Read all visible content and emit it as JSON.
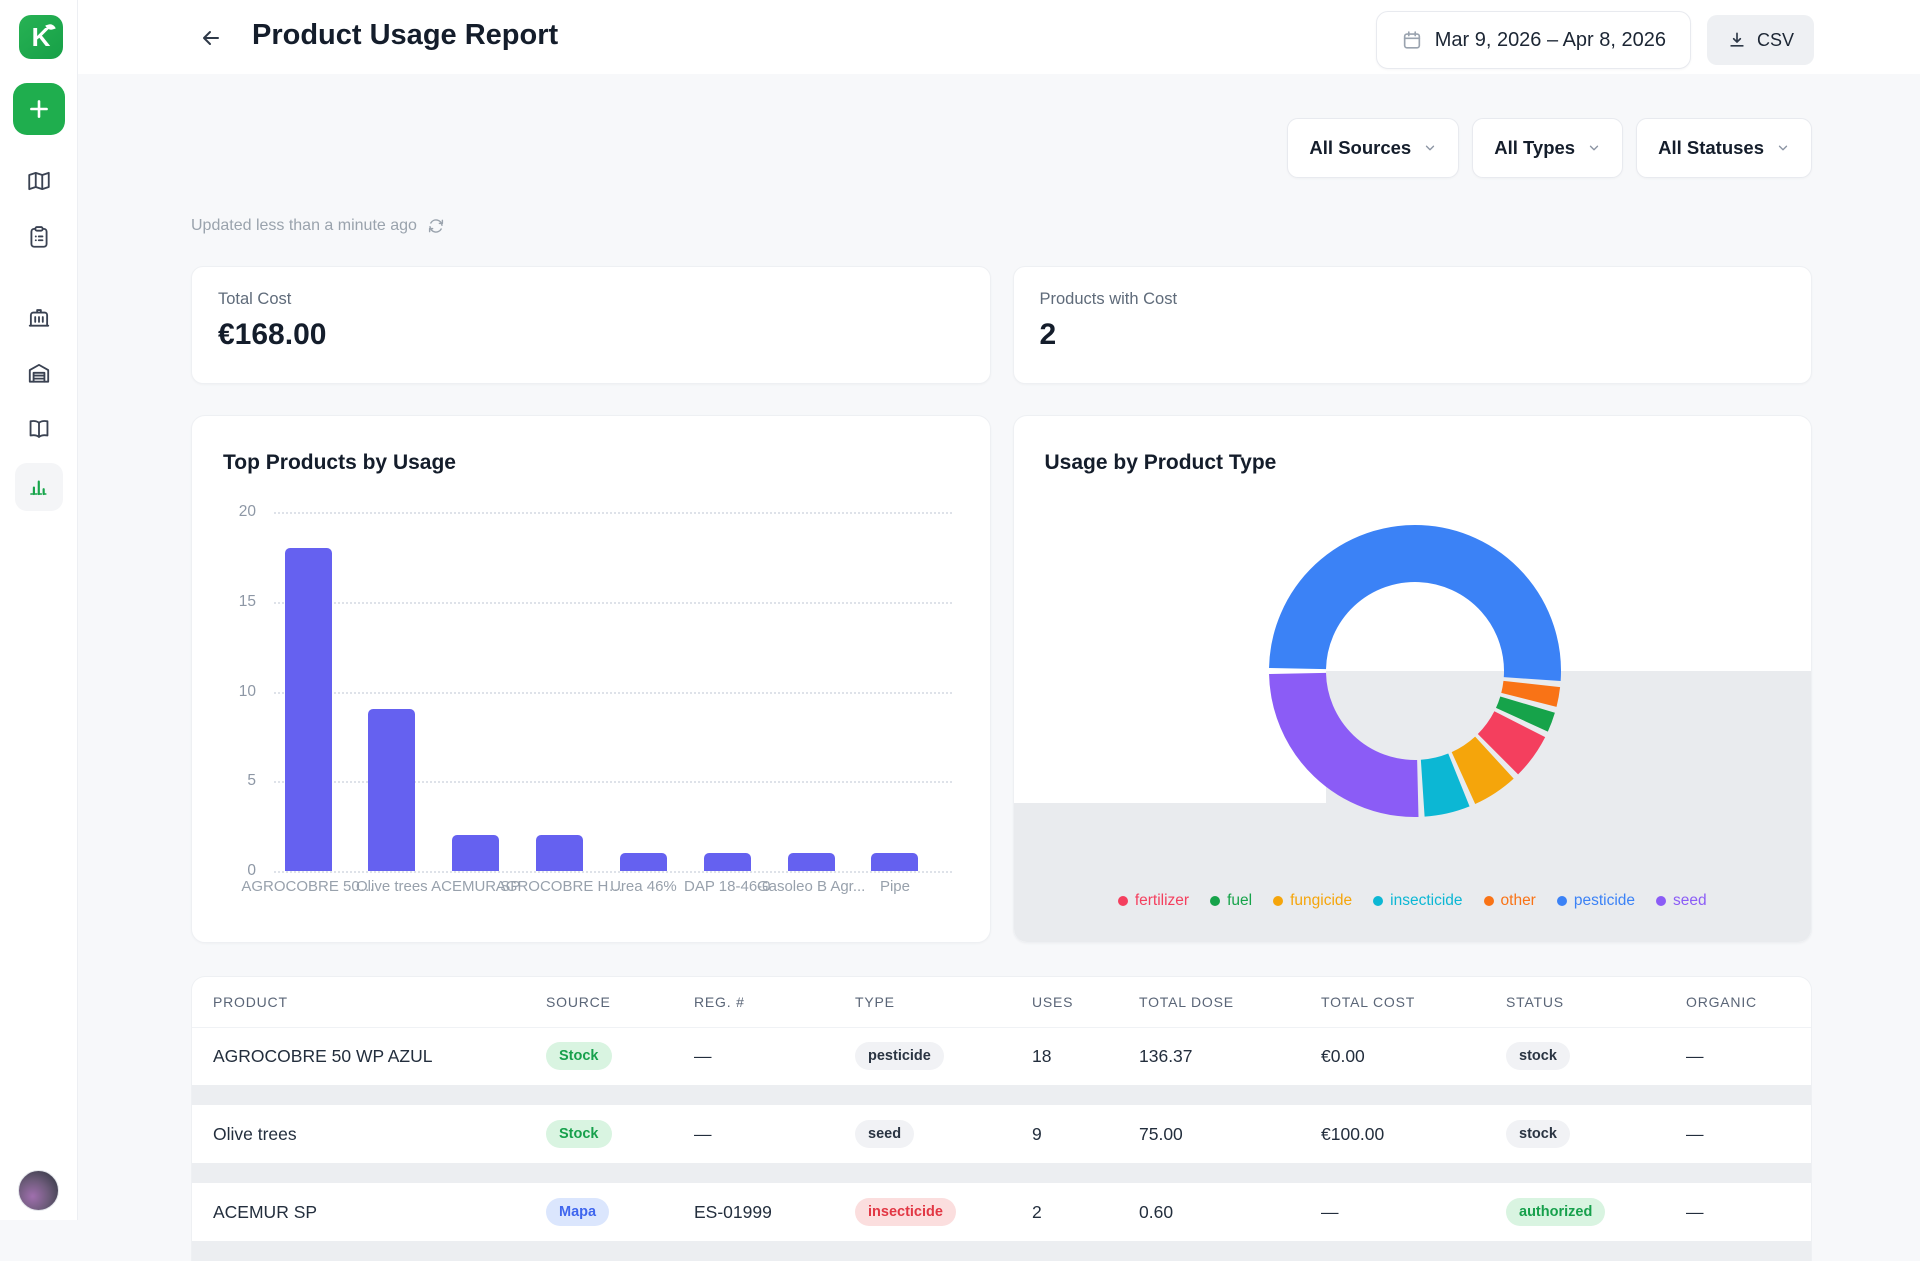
{
  "sidebar": {
    "logo_letter": "K",
    "items": [
      {
        "name": "map"
      },
      {
        "name": "tasks"
      },
      {
        "name": "organization"
      },
      {
        "name": "warehouse"
      },
      {
        "name": "library"
      },
      {
        "name": "reports",
        "active": true
      }
    ]
  },
  "header": {
    "title": "Product Usage Report",
    "date_range": "Mar 9, 2026 – Apr 8, 2026",
    "csv_label": "CSV"
  },
  "filters": [
    {
      "label": "All Sources"
    },
    {
      "label": "All Types"
    },
    {
      "label": "All Statuses"
    }
  ],
  "updated_text": "Updated less than a minute ago",
  "stats": [
    {
      "label": "Total Cost",
      "value": "€168.00"
    },
    {
      "label": "Products with Cost",
      "value": "2"
    }
  ],
  "chart_data": [
    {
      "type": "bar",
      "title": "Top Products by Usage",
      "categories": [
        "AGROCOBRE 50…",
        "Olive trees",
        "ACEMUR SP",
        "AGROCOBRE H…",
        "Urea 46%",
        "DAP 18-46-0",
        "Gasoleo B Agr...",
        "Pipe"
      ],
      "values": [
        18,
        9,
        2,
        2,
        1,
        1,
        1,
        1
      ],
      "xlabel": "",
      "ylabel": "",
      "ylim": [
        0,
        20
      ],
      "yticks": [
        0,
        5,
        10,
        15,
        20
      ],
      "grid": "dotted-horizontal",
      "bar_color": "#6561f0"
    },
    {
      "type": "pie",
      "donut": true,
      "title": "Usage by Product Type",
      "start_angle_deg": 270,
      "series": [
        {
          "name": "pesticide",
          "value": 18,
          "color": "#3b82f6"
        },
        {
          "name": "other",
          "value": 1,
          "color": "#f97316"
        },
        {
          "name": "fuel",
          "value": 1,
          "color": "#16a34a"
        },
        {
          "name": "fertilizer",
          "value": 2,
          "color": "#f43f5e"
        },
        {
          "name": "fungicide",
          "value": 2,
          "color": "#f5a50b"
        },
        {
          "name": "insecticide",
          "value": 2,
          "color": "#0cb7d4"
        },
        {
          "name": "seed",
          "value": 9,
          "color": "#8b5cf6"
        }
      ],
      "legend_order": [
        "fertilizer",
        "fuel",
        "fungicide",
        "insecticide",
        "other",
        "pesticide",
        "seed"
      ],
      "legend_position": "bottom"
    }
  ],
  "table": {
    "columns": [
      "PRODUCT",
      "SOURCE",
      "REG. #",
      "TYPE",
      "USES",
      "TOTAL DOSE",
      "TOTAL COST",
      "STATUS",
      "ORGANIC"
    ],
    "rows": [
      {
        "product": "AGROCOBRE 50 WP AZUL",
        "source": {
          "label": "Stock",
          "variant": "green"
        },
        "reg": "—",
        "type": {
          "label": "pesticide",
          "variant": "neutral"
        },
        "uses": "18",
        "total_dose": "136.37",
        "total_cost": "€0.00",
        "status": {
          "label": "stock",
          "variant": "neutral"
        },
        "organic": "—"
      },
      {
        "product": "Olive trees",
        "source": {
          "label": "Stock",
          "variant": "green"
        },
        "reg": "—",
        "type": {
          "label": "seed",
          "variant": "neutral"
        },
        "uses": "9",
        "total_dose": "75.00",
        "total_cost": "€100.00",
        "status": {
          "label": "stock",
          "variant": "neutral"
        },
        "organic": "—"
      },
      {
        "product": "ACEMUR SP",
        "source": {
          "label": "Mapa",
          "variant": "blue"
        },
        "reg": "ES-01999",
        "type": {
          "label": "insecticide",
          "variant": "red"
        },
        "uses": "2",
        "total_dose": "0.60",
        "total_cost": "—",
        "status": {
          "label": "authorized",
          "variant": "green"
        },
        "organic": "—"
      }
    ]
  }
}
